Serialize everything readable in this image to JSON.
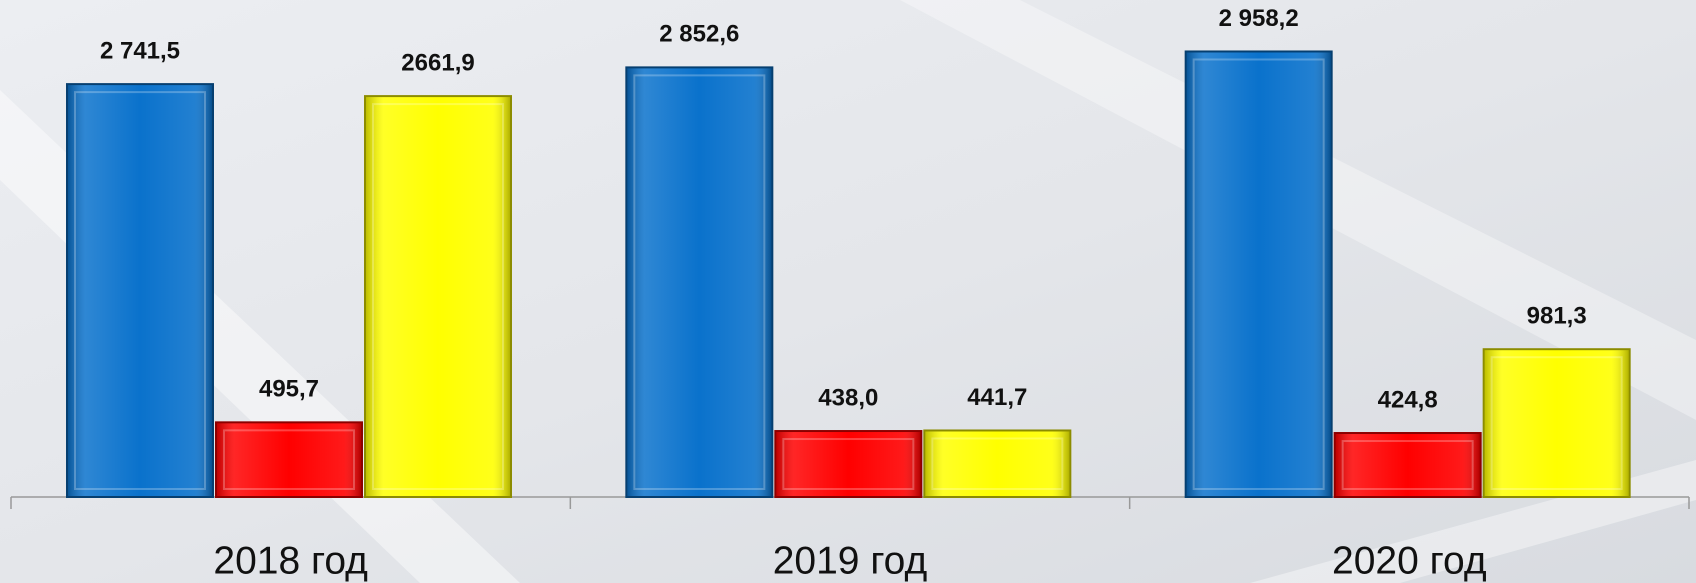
{
  "chart_data": {
    "type": "bar",
    "categories": [
      "2018 год",
      "2019 год",
      "2020 год"
    ],
    "series": [
      {
        "color": "#0a72cc",
        "values": [
          2741.5,
          2852.6,
          2958.2
        ],
        "value_labels": [
          "2 741,5",
          "2 852,6",
          "2 958,2"
        ]
      },
      {
        "color": "#ff0000",
        "values": [
          495.7,
          438.0,
          424.8
        ],
        "value_labels": [
          "495,7",
          "438,0",
          "424,8"
        ]
      },
      {
        "color": "#ffff00",
        "values": [
          2661.9,
          441.7,
          981.3
        ],
        "value_labels": [
          "2661,9",
          "441,7",
          "981,3"
        ]
      }
    ],
    "ylim": [
      0,
      3300
    ]
  }
}
